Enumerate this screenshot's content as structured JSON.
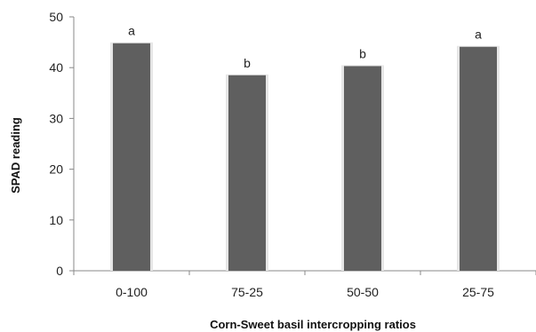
{
  "chart_data": {
    "type": "bar",
    "categories": [
      "0-100",
      "75-25",
      "50-50",
      "25-75"
    ],
    "values": [
      44.8,
      38.5,
      40.3,
      44.1
    ],
    "significance_letters": [
      "a",
      "b",
      "b",
      "a"
    ],
    "xlabel": "Corn-Sweet basil intercropping ratios",
    "ylabel": "SPAD reading",
    "ylim": [
      0,
      50
    ],
    "yticks": [
      0,
      10,
      20,
      30,
      40,
      50
    ],
    "grid": false,
    "legend": "none",
    "colors": {
      "bar": "#5f5f5f",
      "bar_edge": "#e6e6e6",
      "axis": "#888888"
    }
  }
}
